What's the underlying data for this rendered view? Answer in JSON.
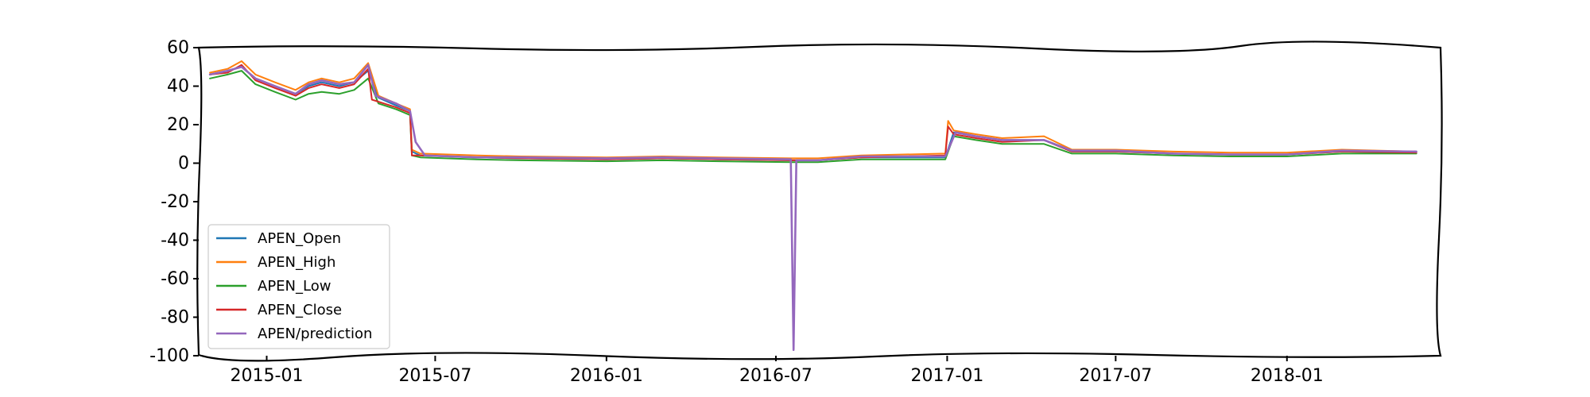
{
  "chart_data": {
    "type": "line",
    "title": "",
    "xlabel": "",
    "ylabel": "",
    "ylim": [
      -100,
      60
    ],
    "xlim": [
      "2014-10-20",
      "2018-06-15"
    ],
    "y_ticks": [
      60,
      40,
      20,
      0,
      -20,
      -40,
      -60,
      -80,
      -100
    ],
    "x_ticks": [
      "2015-01",
      "2015-07",
      "2016-01",
      "2016-07",
      "2017-01",
      "2017-07",
      "2018-01"
    ],
    "x_tick_dates": [
      "2015-01-01",
      "2015-07-01",
      "2016-01-01",
      "2016-07-01",
      "2017-01-01",
      "2017-07-01",
      "2018-01-01"
    ],
    "grid": false,
    "legend_position": "lower-left",
    "series": [
      {
        "name": "APEN_Open",
        "color": "#1f77b4",
        "points": [
          [
            "2014-11-01",
            46
          ],
          [
            "2014-11-20",
            48
          ],
          [
            "2014-12-05",
            50
          ],
          [
            "2014-12-20",
            44
          ],
          [
            "2015-01-10",
            40
          ],
          [
            "2015-02-01",
            36
          ],
          [
            "2015-02-15",
            40
          ],
          [
            "2015-03-01",
            42
          ],
          [
            "2015-03-20",
            40
          ],
          [
            "2015-04-05",
            42
          ],
          [
            "2015-04-20",
            48
          ],
          [
            "2015-05-01",
            34
          ],
          [
            "2015-05-20",
            30
          ],
          [
            "2015-06-04",
            27
          ],
          [
            "2015-06-06",
            6
          ],
          [
            "2015-06-15",
            4
          ],
          [
            "2015-08-15",
            3
          ],
          [
            "2015-10-01",
            2.5
          ],
          [
            "2016-01-01",
            2
          ],
          [
            "2016-03-01",
            2.5
          ],
          [
            "2016-05-01",
            2
          ],
          [
            "2016-07-18",
            1.5
          ],
          [
            "2016-08-15",
            1.5
          ],
          [
            "2016-10-01",
            3
          ],
          [
            "2016-12-30",
            3
          ],
          [
            "2017-01-08",
            16
          ],
          [
            "2017-02-01",
            14
          ],
          [
            "2017-03-01",
            12
          ],
          [
            "2017-04-15",
            12
          ],
          [
            "2017-05-15",
            6
          ],
          [
            "2017-07-01",
            6
          ],
          [
            "2017-09-01",
            5
          ],
          [
            "2017-11-01",
            4.5
          ],
          [
            "2018-01-01",
            4.5
          ],
          [
            "2018-03-01",
            6
          ],
          [
            "2018-05-20",
            5.5
          ]
        ]
      },
      {
        "name": "APEN_High",
        "color": "#ff7f0e",
        "points": [
          [
            "2014-11-01",
            47
          ],
          [
            "2014-11-20",
            49
          ],
          [
            "2014-12-05",
            53
          ],
          [
            "2014-12-20",
            46
          ],
          [
            "2015-01-10",
            42
          ],
          [
            "2015-02-01",
            38
          ],
          [
            "2015-02-15",
            42
          ],
          [
            "2015-03-01",
            44
          ],
          [
            "2015-03-20",
            42
          ],
          [
            "2015-04-05",
            44
          ],
          [
            "2015-04-20",
            52
          ],
          [
            "2015-05-01",
            35
          ],
          [
            "2015-05-20",
            31
          ],
          [
            "2015-06-04",
            28
          ],
          [
            "2015-06-06",
            7
          ],
          [
            "2015-06-15",
            5
          ],
          [
            "2015-08-15",
            4
          ],
          [
            "2015-10-01",
            3.5
          ],
          [
            "2016-01-01",
            3
          ],
          [
            "2016-03-01",
            3.5
          ],
          [
            "2016-05-01",
            3
          ],
          [
            "2016-07-18",
            2.5
          ],
          [
            "2016-08-15",
            2.5
          ],
          [
            "2016-10-01",
            4
          ],
          [
            "2016-12-30",
            5
          ],
          [
            "2017-01-02",
            22
          ],
          [
            "2017-01-08",
            17
          ],
          [
            "2017-02-01",
            15
          ],
          [
            "2017-03-01",
            13
          ],
          [
            "2017-04-15",
            14
          ],
          [
            "2017-05-15",
            7
          ],
          [
            "2017-07-01",
            7
          ],
          [
            "2017-09-01",
            6
          ],
          [
            "2017-11-01",
            5.5
          ],
          [
            "2018-01-01",
            5.5
          ],
          [
            "2018-03-01",
            7
          ],
          [
            "2018-05-20",
            6
          ]
        ]
      },
      {
        "name": "APEN_Low",
        "color": "#2ca02c",
        "points": [
          [
            "2014-11-01",
            44
          ],
          [
            "2014-11-20",
            46
          ],
          [
            "2014-12-05",
            48
          ],
          [
            "2014-12-20",
            41
          ],
          [
            "2015-01-10",
            37
          ],
          [
            "2015-02-01",
            33
          ],
          [
            "2015-02-15",
            36
          ],
          [
            "2015-03-01",
            37
          ],
          [
            "2015-03-20",
            36
          ],
          [
            "2015-04-05",
            38
          ],
          [
            "2015-04-20",
            44
          ],
          [
            "2015-05-01",
            31
          ],
          [
            "2015-05-20",
            28
          ],
          [
            "2015-06-04",
            25
          ],
          [
            "2015-06-06",
            4
          ],
          [
            "2015-06-15",
            3
          ],
          [
            "2015-08-15",
            2
          ],
          [
            "2015-10-01",
            1.5
          ],
          [
            "2016-01-01",
            1
          ],
          [
            "2016-03-01",
            1.5
          ],
          [
            "2016-05-01",
            1
          ],
          [
            "2016-07-18",
            0.5
          ],
          [
            "2016-08-15",
            0.5
          ],
          [
            "2016-10-01",
            2
          ],
          [
            "2016-12-30",
            2
          ],
          [
            "2017-01-08",
            14
          ],
          [
            "2017-02-01",
            12
          ],
          [
            "2017-03-01",
            10
          ],
          [
            "2017-04-15",
            10
          ],
          [
            "2017-05-15",
            5
          ],
          [
            "2017-07-01",
            5
          ],
          [
            "2017-09-01",
            4
          ],
          [
            "2017-11-01",
            3.5
          ],
          [
            "2018-01-01",
            3.5
          ],
          [
            "2018-03-01",
            5
          ],
          [
            "2018-05-20",
            5
          ]
        ]
      },
      {
        "name": "APEN_Close",
        "color": "#d62728",
        "points": [
          [
            "2014-11-01",
            46
          ],
          [
            "2014-11-20",
            47
          ],
          [
            "2014-12-05",
            51
          ],
          [
            "2014-12-20",
            43
          ],
          [
            "2015-01-10",
            39
          ],
          [
            "2015-02-01",
            35
          ],
          [
            "2015-02-15",
            39
          ],
          [
            "2015-03-01",
            41
          ],
          [
            "2015-03-20",
            39
          ],
          [
            "2015-04-05",
            41
          ],
          [
            "2015-04-20",
            49
          ],
          [
            "2015-04-24",
            33
          ],
          [
            "2015-05-20",
            29
          ],
          [
            "2015-06-04",
            26
          ],
          [
            "2015-06-06",
            4
          ],
          [
            "2015-06-15",
            4
          ],
          [
            "2015-08-15",
            3
          ],
          [
            "2015-10-01",
            2.5
          ],
          [
            "2016-01-01",
            2
          ],
          [
            "2016-03-01",
            2.5
          ],
          [
            "2016-05-01",
            2
          ],
          [
            "2016-07-18",
            1.5
          ],
          [
            "2016-08-15",
            1.5
          ],
          [
            "2016-10-01",
            3
          ],
          [
            "2016-12-30",
            4
          ],
          [
            "2017-01-02",
            19
          ],
          [
            "2017-01-08",
            15
          ],
          [
            "2017-02-01",
            13
          ],
          [
            "2017-03-01",
            11
          ],
          [
            "2017-04-15",
            12
          ],
          [
            "2017-05-15",
            6
          ],
          [
            "2017-07-01",
            6
          ],
          [
            "2017-09-01",
            5
          ],
          [
            "2017-11-01",
            4.5
          ],
          [
            "2018-01-01",
            4.5
          ],
          [
            "2018-03-01",
            6
          ],
          [
            "2018-05-20",
            5.5
          ]
        ]
      },
      {
        "name": "APEN/prediction",
        "color": "#9467bd",
        "points": [
          [
            "2014-11-01",
            46
          ],
          [
            "2014-11-20",
            48
          ],
          [
            "2014-12-05",
            50
          ],
          [
            "2014-12-20",
            44
          ],
          [
            "2015-01-10",
            40
          ],
          [
            "2015-02-01",
            36
          ],
          [
            "2015-02-15",
            41
          ],
          [
            "2015-03-01",
            43
          ],
          [
            "2015-03-20",
            41
          ],
          [
            "2015-04-05",
            42
          ],
          [
            "2015-04-20",
            51
          ],
          [
            "2015-04-28",
            35
          ],
          [
            "2015-05-20",
            31
          ],
          [
            "2015-06-04",
            27
          ],
          [
            "2015-06-10",
            11
          ],
          [
            "2015-06-20",
            4
          ],
          [
            "2015-08-15",
            3
          ],
          [
            "2015-10-01",
            3
          ],
          [
            "2016-01-01",
            2.5
          ],
          [
            "2016-03-01",
            3
          ],
          [
            "2016-05-01",
            2.5
          ],
          [
            "2016-07-17",
            2
          ],
          [
            "2016-07-20",
            -97
          ],
          [
            "2016-07-23",
            1.5
          ],
          [
            "2016-08-15",
            1.5
          ],
          [
            "2016-10-01",
            3.5
          ],
          [
            "2016-12-30",
            3.5
          ],
          [
            "2017-01-10",
            16
          ],
          [
            "2017-02-01",
            14
          ],
          [
            "2017-03-01",
            12
          ],
          [
            "2017-04-15",
            12
          ],
          [
            "2017-05-15",
            6.5
          ],
          [
            "2017-07-01",
            6.5
          ],
          [
            "2017-09-01",
            5
          ],
          [
            "2017-11-01",
            4.5
          ],
          [
            "2018-01-01",
            4.5
          ],
          [
            "2018-03-01",
            6.5
          ],
          [
            "2018-05-20",
            6
          ]
        ]
      }
    ]
  }
}
